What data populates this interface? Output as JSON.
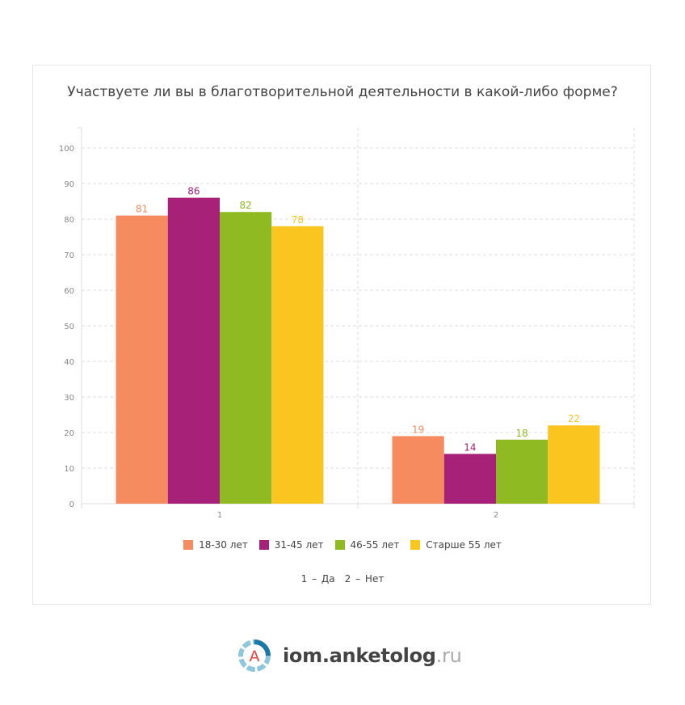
{
  "chart_data": {
    "type": "bar",
    "title": "Участвуете ли вы в благотворительной деятельности в какой-либо форме?",
    "categories": [
      "1",
      "2"
    ],
    "series": [
      {
        "name": "18-30 лет",
        "color": "#f68b60",
        "values": [
          81,
          19
        ]
      },
      {
        "name": "31-45 лет",
        "color": "#a62177",
        "values": [
          86,
          14
        ]
      },
      {
        "name": "46-55 лет",
        "color": "#8fba22",
        "values": [
          82,
          18
        ]
      },
      {
        "name": "Старше 55 лет",
        "color": "#fbc520",
        "values": [
          78,
          22
        ]
      }
    ],
    "yticks": [
      0,
      10,
      20,
      30,
      40,
      50,
      60,
      70,
      80,
      90,
      100
    ],
    "ylim": [
      0,
      105
    ],
    "grid": true,
    "legend_position": "bottom",
    "category_notes": [
      "1 – Да",
      "2 – Нет"
    ]
  },
  "footer": {
    "brand": "iom.anketolog",
    "tld": ".ru",
    "logo_letter": "A"
  }
}
